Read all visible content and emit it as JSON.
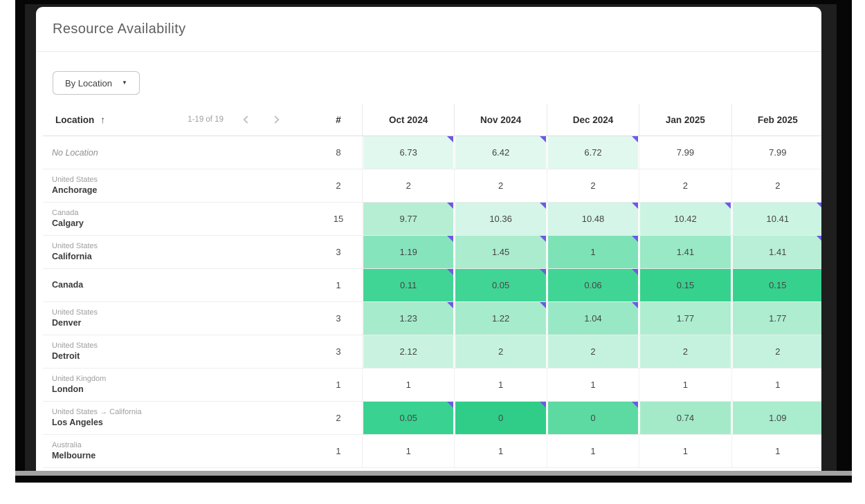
{
  "panel": {
    "title": "Resource Availability"
  },
  "toolbar": {
    "group_by_label": "By Location",
    "caret_glyph": "▼"
  },
  "icons": {
    "sort": "arrow-up-icon",
    "prev": "chevron-left-icon",
    "next": "chevron-right-icon",
    "dropdown": "caret-down-icon"
  },
  "colors": {
    "marker": "#6d59e6",
    "heat_base": "#2fcd88",
    "frame": "#1e1e1e"
  },
  "table": {
    "location_header": "Location",
    "sort_arrow": "↑",
    "pagination": {
      "range_text": "1-19 of 19"
    },
    "count_header": "#",
    "month_columns": [
      "Oct 2024",
      "Nov 2024",
      "Dec 2024",
      "Jan 2025",
      "Feb 2025"
    ],
    "rows": [
      {
        "location_secondary": "",
        "location_primary": "No Location",
        "italic": true,
        "count": "8",
        "cells": [
          {
            "value": "6.73",
            "bg": "#e1f8ee",
            "marker": true
          },
          {
            "value": "6.42",
            "bg": "#e1f8ee",
            "marker": true
          },
          {
            "value": "6.72",
            "bg": "#e1f8ee",
            "marker": true
          },
          {
            "value": "7.99",
            "bg": "#ffffff",
            "marker": false
          },
          {
            "value": "7.99",
            "bg": "#ffffff",
            "marker": false
          }
        ]
      },
      {
        "location_secondary": "United States",
        "location_primary": "Anchorage",
        "italic": false,
        "count": "2",
        "cells": [
          {
            "value": "2",
            "bg": "#ffffff",
            "marker": false
          },
          {
            "value": "2",
            "bg": "#ffffff",
            "marker": false
          },
          {
            "value": "2",
            "bg": "#ffffff",
            "marker": false
          },
          {
            "value": "2",
            "bg": "#ffffff",
            "marker": false
          },
          {
            "value": "2",
            "bg": "#ffffff",
            "marker": false
          }
        ]
      },
      {
        "location_secondary": "Canada",
        "location_primary": "Calgary",
        "italic": false,
        "count": "15",
        "cells": [
          {
            "value": "9.77",
            "bg": "#b5eed3",
            "marker": true
          },
          {
            "value": "10.36",
            "bg": "#d4f5e7",
            "marker": true
          },
          {
            "value": "10.48",
            "bg": "#d4f5e7",
            "marker": true
          },
          {
            "value": "10.42",
            "bg": "#ccf4e2",
            "marker": true
          },
          {
            "value": "10.41",
            "bg": "#ccf4e2",
            "marker": true
          }
        ]
      },
      {
        "location_secondary": "United States",
        "location_primary": "California",
        "italic": false,
        "count": "3",
        "cells": [
          {
            "value": "1.19",
            "bg": "#86e4bd",
            "marker": true
          },
          {
            "value": "1.45",
            "bg": "#abecce",
            "marker": true
          },
          {
            "value": "1",
            "bg": "#7ee2b7",
            "marker": true
          },
          {
            "value": "1.41",
            "bg": "#99e9c6",
            "marker": false
          },
          {
            "value": "1.41",
            "bg": "#b8efd6",
            "marker": true
          }
        ]
      },
      {
        "location_secondary": "",
        "location_primary": "Canada",
        "italic": false,
        "count": "1",
        "cells": [
          {
            "value": "0.11",
            "bg": "#41d595",
            "marker": true
          },
          {
            "value": "0.05",
            "bg": "#41d595",
            "marker": true
          },
          {
            "value": "0.06",
            "bg": "#41d595",
            "marker": true
          },
          {
            "value": "0.15",
            "bg": "#37d18e",
            "marker": false
          },
          {
            "value": "0.15",
            "bg": "#37d18e",
            "marker": false
          }
        ]
      },
      {
        "location_secondary": "United States",
        "location_primary": "Denver",
        "italic": false,
        "count": "3",
        "cells": [
          {
            "value": "1.23",
            "bg": "#a6ebcc",
            "marker": true
          },
          {
            "value": "1.22",
            "bg": "#a6ebcc",
            "marker": true
          },
          {
            "value": "1.04",
            "bg": "#98e8c5",
            "marker": true
          },
          {
            "value": "1.77",
            "bg": "#aeedd0",
            "marker": false
          },
          {
            "value": "1.77",
            "bg": "#aeedd0",
            "marker": false
          }
        ]
      },
      {
        "location_secondary": "United States",
        "location_primary": "Detroit",
        "italic": false,
        "count": "3",
        "cells": [
          {
            "value": "2.12",
            "bg": "#c9f3e0",
            "marker": false
          },
          {
            "value": "2",
            "bg": "#c5f2de",
            "marker": false
          },
          {
            "value": "2",
            "bg": "#c5f2de",
            "marker": false
          },
          {
            "value": "2",
            "bg": "#c5f2de",
            "marker": false
          },
          {
            "value": "2",
            "bg": "#c5f2de",
            "marker": false
          }
        ]
      },
      {
        "location_secondary": "United Kingdom",
        "location_primary": "London",
        "italic": false,
        "count": "1",
        "cells": [
          {
            "value": "1",
            "bg": "#ffffff",
            "marker": false
          },
          {
            "value": "1",
            "bg": "#ffffff",
            "marker": false
          },
          {
            "value": "1",
            "bg": "#ffffff",
            "marker": false
          },
          {
            "value": "1",
            "bg": "#ffffff",
            "marker": false
          },
          {
            "value": "1",
            "bg": "#ffffff",
            "marker": false
          }
        ]
      },
      {
        "location_secondary": "United States → California",
        "location_primary": "Los Angeles",
        "italic": false,
        "count": "2",
        "cells": [
          {
            "value": "0.05",
            "bg": "#39d291",
            "marker": true
          },
          {
            "value": "0",
            "bg": "#30cd89",
            "marker": true
          },
          {
            "value": "0",
            "bg": "#5cdaa2",
            "marker": true
          },
          {
            "value": "0.74",
            "bg": "#a4eac9",
            "marker": false
          },
          {
            "value": "1.09",
            "bg": "#a9ecce",
            "marker": false
          }
        ]
      },
      {
        "location_secondary": "Australia",
        "location_primary": "Melbourne",
        "italic": false,
        "count": "1",
        "cells": [
          {
            "value": "1",
            "bg": "#ffffff",
            "marker": false
          },
          {
            "value": "1",
            "bg": "#ffffff",
            "marker": false
          },
          {
            "value": "1",
            "bg": "#ffffff",
            "marker": false
          },
          {
            "value": "1",
            "bg": "#ffffff",
            "marker": false
          },
          {
            "value": "1",
            "bg": "#ffffff",
            "marker": false
          }
        ]
      }
    ]
  }
}
